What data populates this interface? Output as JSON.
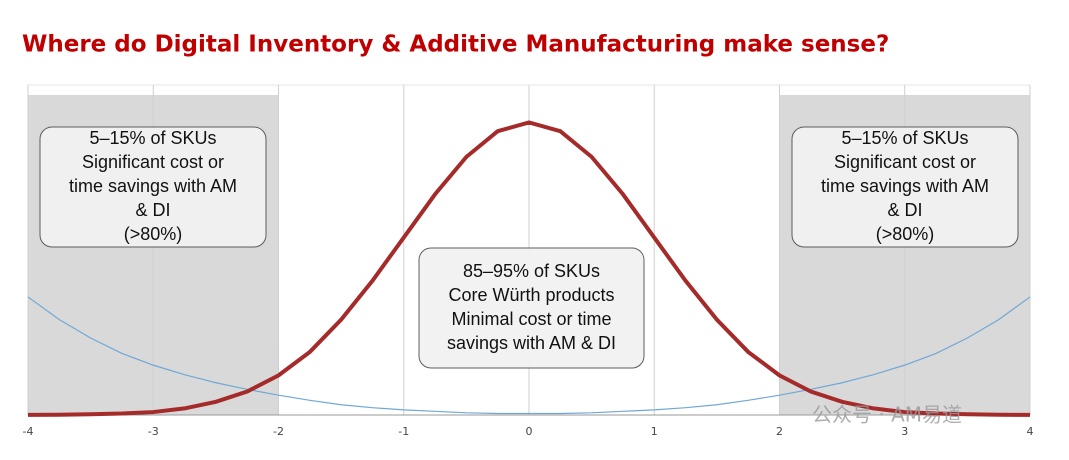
{
  "chart_data": {
    "type": "line",
    "title": "Where do Digital Inventory & Additive Manufacturing make sense?",
    "x": [
      -4,
      -3.75,
      -3.5,
      -3.25,
      -3,
      -2.75,
      -2.5,
      -2.25,
      -2,
      -1.75,
      -1.5,
      -1.25,
      -1,
      -0.75,
      -0.5,
      -0.25,
      0,
      0.25,
      0.5,
      0.75,
      1,
      1.25,
      1.5,
      1.75,
      2,
      2.25,
      2.5,
      2.75,
      3,
      3.25,
      3.5,
      3.75,
      4
    ],
    "series": [
      {
        "color": "#a52a2a",
        "values": [
          0.0001,
          0.0004,
          0.001,
          0.002,
          0.004,
          0.009,
          0.018,
          0.032,
          0.054,
          0.086,
          0.13,
          0.183,
          0.242,
          0.301,
          0.352,
          0.387,
          0.399,
          0.387,
          0.352,
          0.301,
          0.242,
          0.183,
          0.13,
          0.086,
          0.054,
          0.032,
          0.018,
          0.009,
          0.004,
          0.002,
          0.001,
          0.0004,
          0.0001
        ]
      },
      {
        "color": "#6fa8d6",
        "values": [
          0.161,
          0.13,
          0.105,
          0.084,
          0.068,
          0.055,
          0.044,
          0.035,
          0.027,
          0.02,
          0.014,
          0.01,
          0.007,
          0.005,
          0.003,
          0.002,
          0.002,
          0.002,
          0.003,
          0.005,
          0.007,
          0.01,
          0.014,
          0.02,
          0.027,
          0.035,
          0.044,
          0.055,
          0.068,
          0.084,
          0.105,
          0.13,
          0.161
        ]
      }
    ],
    "xlim": [
      -4,
      4
    ],
    "ylim": [
      0,
      0.45
    ],
    "xticks": [
      -4,
      -3,
      -2,
      -1,
      0,
      1,
      2,
      3,
      4
    ],
    "grid": true,
    "shaded_regions": [
      [
        -4,
        -2
      ],
      [
        2,
        4
      ]
    ],
    "shade_color": "#d9d9d9",
    "annotations": [
      {
        "lines": [
          "5–15% of SKUs",
          "Significant cost or",
          "time savings with AM",
          "& DI",
          "(>80%)"
        ]
      },
      {
        "lines": [
          "5–15% of SKUs",
          "Significant cost or",
          "time savings with AM",
          "& DI",
          "(>80%)"
        ]
      },
      {
        "lines": [
          "85–95% of SKUs",
          "Core Würth products",
          "Minimal cost or time",
          "savings with AM & DI"
        ]
      }
    ],
    "watermark": "公众号 · AM易道"
  }
}
